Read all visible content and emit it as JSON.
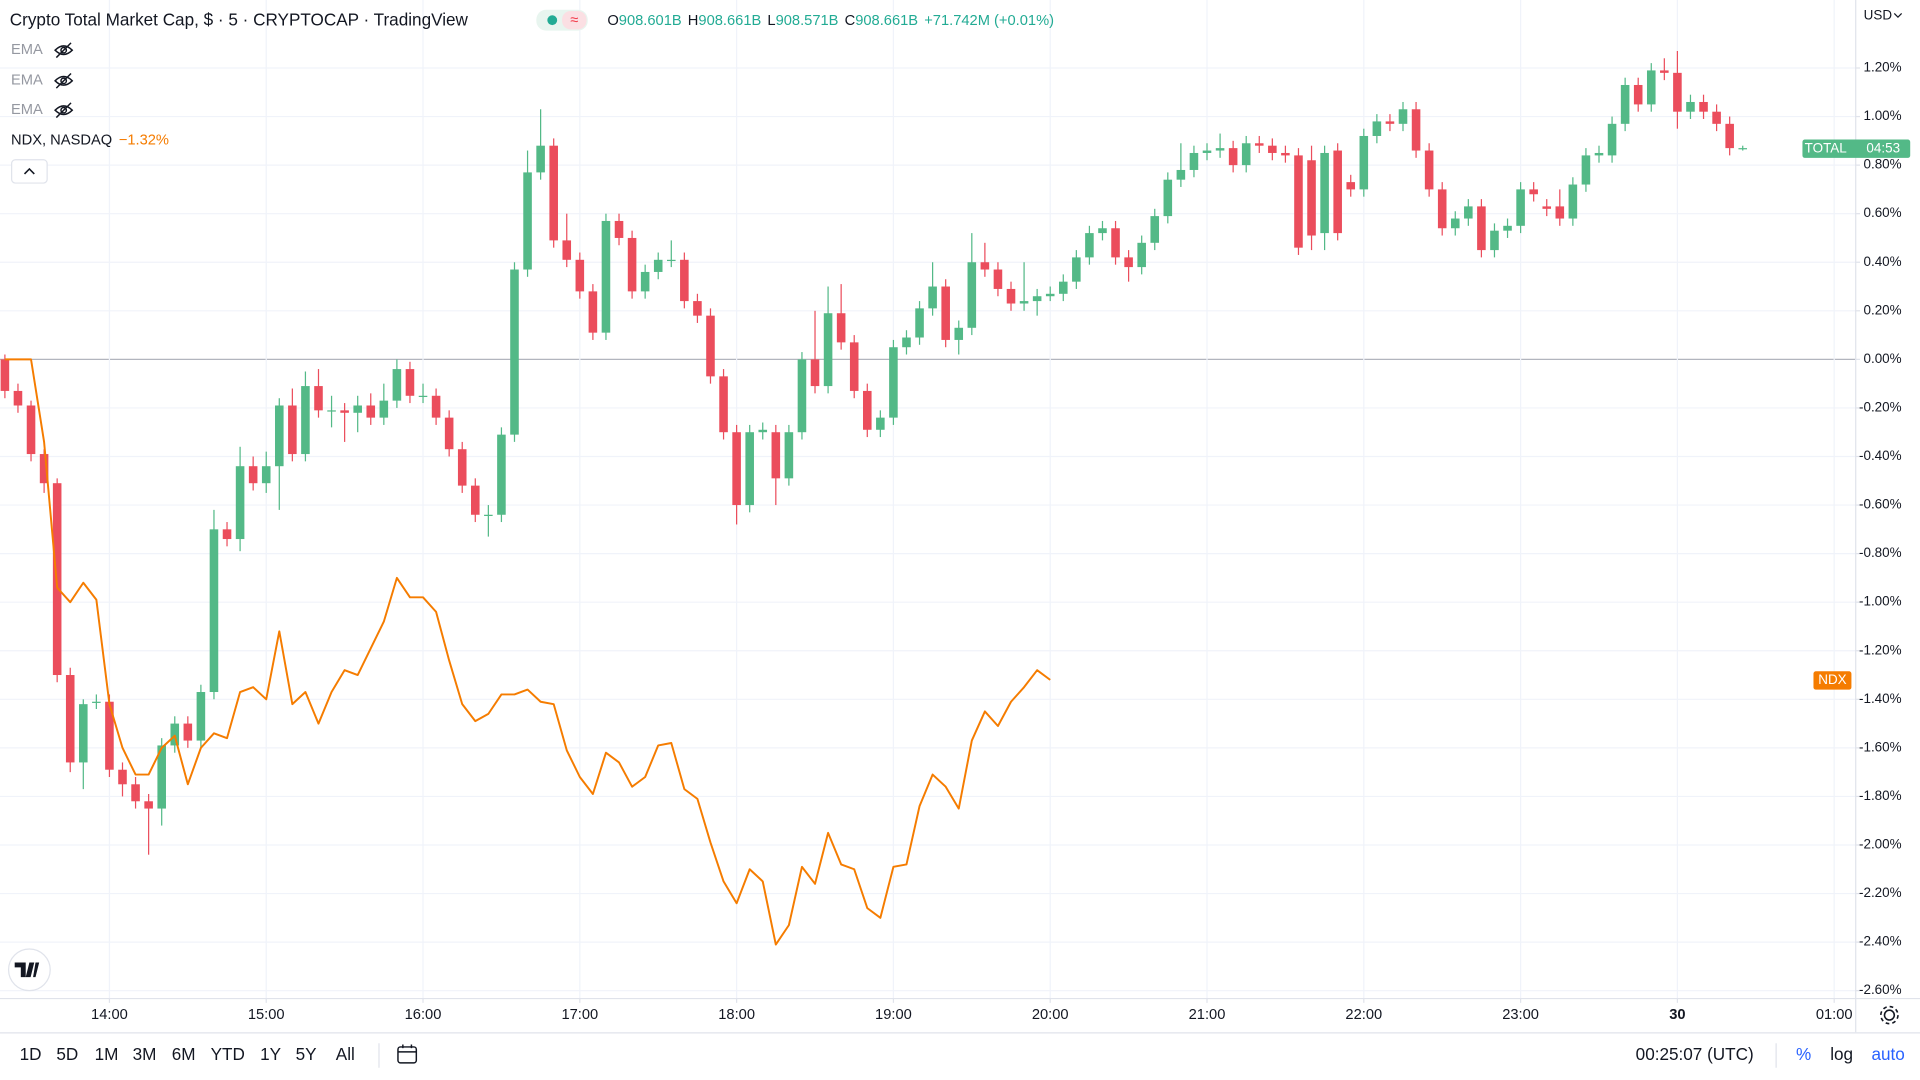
{
  "chart_data": {
    "type": "candlestick",
    "xlim": [
      -0.375,
      141.6
    ],
    "xticks": [
      {
        "value": 8,
        "label": "14:00"
      },
      {
        "value": 20,
        "label": "15:00"
      },
      {
        "value": 32,
        "label": "16:00"
      },
      {
        "value": 44,
        "label": "17:00"
      },
      {
        "value": 56,
        "label": "18:00"
      },
      {
        "value": 68,
        "label": "19:00"
      },
      {
        "value": 80,
        "label": "20:00"
      },
      {
        "value": 92,
        "label": "21:00"
      },
      {
        "value": 104,
        "label": "22:00"
      },
      {
        "value": 116,
        "label": "23:00"
      },
      {
        "value": 128,
        "label": "30"
      },
      {
        "value": 140,
        "label": "01:00"
      }
    ],
    "ylim": [
      -2.63,
      1.48
    ],
    "yticks": [
      {
        "value": 1.2,
        "label": "1.20%"
      },
      {
        "value": 1.0,
        "label": "1.00%"
      },
      {
        "value": 0.8,
        "label": "0.80%"
      },
      {
        "value": 0.6,
        "label": "0.60%"
      },
      {
        "value": 0.4,
        "label": "0.40%"
      },
      {
        "value": 0.2,
        "label": "0.20%"
      },
      {
        "value": 0,
        "label": "0.00%"
      },
      {
        "value": -0.2,
        "label": "-0.20%"
      },
      {
        "value": -0.4,
        "label": "-0.40%"
      },
      {
        "value": -0.6,
        "label": "-0.60%"
      },
      {
        "value": -0.8,
        "label": "-0.80%"
      },
      {
        "value": -1.0,
        "label": "-1.00%"
      },
      {
        "value": -1.2,
        "label": "-1.20%"
      },
      {
        "value": -1.4,
        "label": "-1.40%"
      },
      {
        "value": -1.6,
        "label": "-1.60%"
      },
      {
        "value": -1.8,
        "label": "-1.80%"
      },
      {
        "value": -2.0,
        "label": "-2.00%"
      },
      {
        "value": -2.2,
        "label": "-2.20%"
      },
      {
        "value": -2.4,
        "label": "-2.40%"
      },
      {
        "value": -2.6,
        "label": "-2.60%"
      }
    ],
    "grid": true,
    "series": [
      {
        "name": "TOTAL",
        "type": "candlestick",
        "up_color": "#53b987",
        "down_color": "#eb4d5c",
        "candles": [
          [
            0.0,
            0.02,
            -0.16,
            -0.13
          ],
          [
            -0.13,
            -0.1,
            -0.22,
            -0.19
          ],
          [
            -0.19,
            -0.17,
            -0.42,
            -0.39
          ],
          [
            -0.39,
            -0.37,
            -0.55,
            -0.51
          ],
          [
            -0.51,
            -0.49,
            -1.33,
            -1.3
          ],
          [
            -1.3,
            -1.27,
            -1.7,
            -1.66
          ],
          [
            -1.66,
            -1.4,
            -1.77,
            -1.42
          ],
          [
            -1.41,
            -1.38,
            -1.44,
            -1.41
          ],
          [
            -1.41,
            -1.38,
            -1.72,
            -1.69
          ],
          [
            -1.69,
            -1.66,
            -1.8,
            -1.75
          ],
          [
            -1.75,
            -1.72,
            -1.85,
            -1.82
          ],
          [
            -1.82,
            -1.79,
            -2.04,
            -1.85
          ],
          [
            -1.85,
            -1.56,
            -1.92,
            -1.59
          ],
          [
            -1.59,
            -1.47,
            -1.62,
            -1.5
          ],
          [
            -1.5,
            -1.47,
            -1.6,
            -1.57
          ],
          [
            -1.57,
            -1.34,
            -1.6,
            -1.37
          ],
          [
            -1.37,
            -0.62,
            -1.4,
            -0.7
          ],
          [
            -0.7,
            -0.67,
            -0.77,
            -0.74
          ],
          [
            -0.74,
            -0.36,
            -0.79,
            -0.44
          ],
          [
            -0.44,
            -0.4,
            -0.54,
            -0.51
          ],
          [
            -0.51,
            -0.38,
            -0.55,
            -0.44
          ],
          [
            -0.44,
            -0.16,
            -0.62,
            -0.19
          ],
          [
            -0.19,
            -0.12,
            -0.42,
            -0.39
          ],
          [
            -0.39,
            -0.05,
            -0.42,
            -0.11
          ],
          [
            -0.11,
            -0.04,
            -0.24,
            -0.21
          ],
          [
            -0.21,
            -0.15,
            -0.28,
            -0.21
          ],
          [
            -0.21,
            -0.18,
            -0.34,
            -0.22
          ],
          [
            -0.22,
            -0.15,
            -0.3,
            -0.19
          ],
          [
            -0.19,
            -0.14,
            -0.27,
            -0.24
          ],
          [
            -0.24,
            -0.1,
            -0.27,
            -0.17
          ],
          [
            -0.17,
            0.0,
            -0.2,
            -0.04
          ],
          [
            -0.04,
            -0.01,
            -0.18,
            -0.15
          ],
          [
            -0.15,
            -0.1,
            -0.18,
            -0.15
          ],
          [
            -0.15,
            -0.12,
            -0.27,
            -0.24
          ],
          [
            -0.24,
            -0.21,
            -0.4,
            -0.37
          ],
          [
            -0.37,
            -0.34,
            -0.55,
            -0.52
          ],
          [
            -0.52,
            -0.49,
            -0.67,
            -0.64
          ],
          [
            -0.64,
            -0.6,
            -0.73,
            -0.64
          ],
          [
            -0.64,
            -0.28,
            -0.67,
            -0.31
          ],
          [
            -0.31,
            0.4,
            -0.34,
            0.37
          ],
          [
            0.37,
            0.86,
            0.34,
            0.77
          ],
          [
            0.77,
            1.03,
            0.74,
            0.88
          ],
          [
            0.88,
            0.91,
            0.46,
            0.49
          ],
          [
            0.49,
            0.6,
            0.38,
            0.41
          ],
          [
            0.41,
            0.44,
            0.25,
            0.28
          ],
          [
            0.28,
            0.31,
            0.08,
            0.11
          ],
          [
            0.11,
            0.6,
            0.08,
            0.57
          ],
          [
            0.57,
            0.6,
            0.47,
            0.5
          ],
          [
            0.5,
            0.53,
            0.25,
            0.28
          ],
          [
            0.28,
            0.39,
            0.25,
            0.36
          ],
          [
            0.36,
            0.44,
            0.33,
            0.41
          ],
          [
            0.41,
            0.49,
            0.38,
            0.41
          ],
          [
            0.41,
            0.44,
            0.21,
            0.24
          ],
          [
            0.24,
            0.27,
            0.15,
            0.18
          ],
          [
            0.18,
            0.21,
            -0.1,
            -0.07
          ],
          [
            -0.07,
            -0.04,
            -0.33,
            -0.3
          ],
          [
            -0.3,
            -0.27,
            -0.68,
            -0.6
          ],
          [
            -0.6,
            -0.27,
            -0.63,
            -0.3
          ],
          [
            -0.3,
            -0.26,
            -0.33,
            -0.29
          ],
          [
            -0.3,
            -0.27,
            -0.6,
            -0.49
          ],
          [
            -0.49,
            -0.27,
            -0.52,
            -0.3
          ],
          [
            -0.3,
            0.03,
            -0.33,
            0.0
          ],
          [
            0.0,
            0.2,
            -0.14,
            -0.11
          ],
          [
            -0.11,
            0.3,
            -0.14,
            0.19
          ],
          [
            0.19,
            0.31,
            0.04,
            0.07
          ],
          [
            0.07,
            0.1,
            -0.16,
            -0.13
          ],
          [
            -0.13,
            -0.1,
            -0.32,
            -0.29
          ],
          [
            -0.29,
            -0.21,
            -0.32,
            -0.24
          ],
          [
            -0.24,
            0.08,
            -0.27,
            0.05
          ],
          [
            0.05,
            0.12,
            0.02,
            0.09
          ],
          [
            0.09,
            0.24,
            0.06,
            0.21
          ],
          [
            0.21,
            0.4,
            0.18,
            0.3
          ],
          [
            0.3,
            0.33,
            0.05,
            0.08
          ],
          [
            0.08,
            0.16,
            0.02,
            0.13
          ],
          [
            0.13,
            0.52,
            0.1,
            0.4
          ],
          [
            0.4,
            0.48,
            0.34,
            0.37
          ],
          [
            0.37,
            0.4,
            0.26,
            0.29
          ],
          [
            0.29,
            0.32,
            0.2,
            0.23
          ],
          [
            0.23,
            0.4,
            0.2,
            0.24
          ],
          [
            0.24,
            0.29,
            0.18,
            0.26
          ],
          [
            0.26,
            0.3,
            0.24,
            0.27
          ],
          [
            0.27,
            0.35,
            0.24,
            0.32
          ],
          [
            0.32,
            0.45,
            0.29,
            0.42
          ],
          [
            0.42,
            0.55,
            0.39,
            0.52
          ],
          [
            0.52,
            0.57,
            0.49,
            0.54
          ],
          [
            0.54,
            0.57,
            0.39,
            0.42
          ],
          [
            0.42,
            0.45,
            0.32,
            0.38
          ],
          [
            0.38,
            0.51,
            0.35,
            0.48
          ],
          [
            0.48,
            0.62,
            0.45,
            0.59
          ],
          [
            0.59,
            0.77,
            0.56,
            0.74
          ],
          [
            0.74,
            0.89,
            0.71,
            0.78
          ],
          [
            0.78,
            0.88,
            0.75,
            0.85
          ],
          [
            0.85,
            0.89,
            0.82,
            0.86
          ],
          [
            0.86,
            0.93,
            0.83,
            0.87
          ],
          [
            0.87,
            0.9,
            0.77,
            0.8
          ],
          [
            0.8,
            0.92,
            0.77,
            0.89
          ],
          [
            0.89,
            0.92,
            0.85,
            0.88
          ],
          [
            0.88,
            0.91,
            0.82,
            0.85
          ],
          [
            0.85,
            0.88,
            0.81,
            0.84
          ],
          [
            0.84,
            0.87,
            0.43,
            0.46
          ],
          [
            0.82,
            0.88,
            0.45,
            0.51
          ],
          [
            0.52,
            0.88,
            0.45,
            0.85
          ],
          [
            0.86,
            0.89,
            0.49,
            0.52
          ],
          [
            0.73,
            0.76,
            0.67,
            0.7
          ],
          [
            0.7,
            0.95,
            0.67,
            0.92
          ],
          [
            0.92,
            1.01,
            0.89,
            0.98
          ],
          [
            0.98,
            1.01,
            0.94,
            0.97
          ],
          [
            0.97,
            1.06,
            0.94,
            1.03
          ],
          [
            1.03,
            1.06,
            0.83,
            0.86
          ],
          [
            0.86,
            0.89,
            0.67,
            0.7
          ],
          [
            0.7,
            0.73,
            0.51,
            0.54
          ],
          [
            0.54,
            0.61,
            0.51,
            0.58
          ],
          [
            0.58,
            0.66,
            0.55,
            0.63
          ],
          [
            0.63,
            0.66,
            0.42,
            0.45
          ],
          [
            0.45,
            0.56,
            0.42,
            0.53
          ],
          [
            0.53,
            0.58,
            0.5,
            0.55
          ],
          [
            0.55,
            0.73,
            0.52,
            0.7
          ],
          [
            0.7,
            0.73,
            0.65,
            0.68
          ],
          [
            0.63,
            0.66,
            0.59,
            0.62
          ],
          [
            0.63,
            0.7,
            0.55,
            0.58
          ],
          [
            0.58,
            0.75,
            0.55,
            0.72
          ],
          [
            0.72,
            0.87,
            0.69,
            0.84
          ],
          [
            0.84,
            0.88,
            0.81,
            0.85
          ],
          [
            0.84,
            1.0,
            0.81,
            0.97
          ],
          [
            0.97,
            1.16,
            0.94,
            1.13
          ],
          [
            1.13,
            1.16,
            1.02,
            1.05
          ],
          [
            1.05,
            1.22,
            1.02,
            1.19
          ],
          [
            1.19,
            1.24,
            1.15,
            1.18
          ],
          [
            1.18,
            1.27,
            0.95,
            1.02
          ],
          [
            1.02,
            1.09,
            0.99,
            1.06
          ],
          [
            1.06,
            1.09,
            0.99,
            1.02
          ],
          [
            1.02,
            1.05,
            0.94,
            0.97
          ],
          [
            0.97,
            1.0,
            0.84,
            0.87
          ],
          [
            0.87,
            0.88,
            0.86,
            0.87
          ]
        ]
      },
      {
        "name": "NDX",
        "type": "line",
        "color": "#f57c00",
        "values": [
          0,
          0,
          0,
          -0.34,
          -0.94,
          -1.0,
          -0.92,
          -0.99,
          -1.42,
          -1.6,
          -1.71,
          -1.71,
          -1.6,
          -1.55,
          -1.75,
          -1.6,
          -1.54,
          -1.56,
          -1.37,
          -1.35,
          -1.4,
          -1.12,
          -1.42,
          -1.37,
          -1.5,
          -1.37,
          -1.28,
          -1.3,
          -1.19,
          -1.08,
          -0.9,
          -0.98,
          -0.98,
          -1.04,
          -1.24,
          -1.42,
          -1.49,
          -1.46,
          -1.38,
          -1.38,
          -1.36,
          -1.41,
          -1.42,
          -1.61,
          -1.72,
          -1.79,
          -1.62,
          -1.66,
          -1.76,
          -1.72,
          -1.59,
          -1.58,
          -1.77,
          -1.81,
          -1.99,
          -2.15,
          -2.24,
          -2.1,
          -2.15,
          -2.41,
          -2.33,
          -2.09,
          -2.16,
          -1.95,
          -2.08,
          -2.1,
          -2.26,
          -2.3,
          -2.09,
          -2.08,
          -1.84,
          -1.71,
          -1.76,
          -1.85,
          -1.57,
          -1.45,
          -1.51,
          -1.41,
          -1.35,
          -1.28,
          -1.32
        ]
      }
    ]
  },
  "ui": {
    "title": "Crypto Total Market Cap, $ · 5 · CRYPTOCAP · TradingView",
    "ohlc": [
      [
        "O",
        "908.601B"
      ],
      [
        "H",
        "908.661B"
      ],
      [
        "L",
        "908.571B"
      ],
      [
        "C",
        "908.661B"
      ]
    ],
    "change": "+71.742M (+0.01%)",
    "indicators": [
      "EMA",
      "EMA",
      "EMA"
    ],
    "overlay": {
      "name": "NDX, NASDAQ",
      "change": "−1.32%"
    },
    "currency": "USD",
    "countdown": "04:53",
    "ranges": [
      "1D",
      "5D",
      "1M",
      "3M",
      "6M",
      "YTD",
      "1Y",
      "5Y",
      "All"
    ],
    "clock": "00:25:07 (UTC)",
    "scale_buttons": [
      "%",
      "log",
      "auto"
    ]
  }
}
